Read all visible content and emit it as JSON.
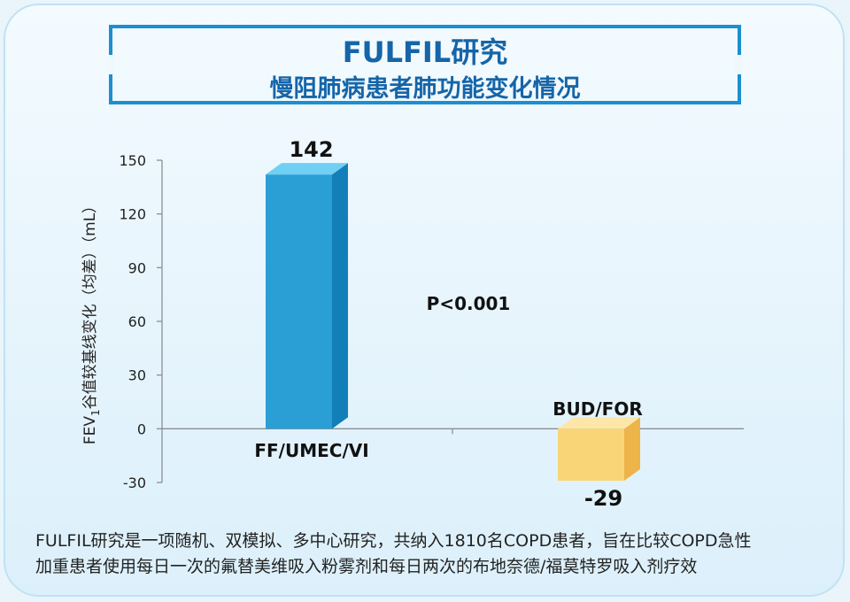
{
  "header": {
    "title": "FULFIL研究",
    "subtitle": "慢阻肺病患者肺功能变化情况"
  },
  "chart_data": {
    "type": "bar",
    "categories": [
      "FF/UMEC/VI",
      "BUD/FOR"
    ],
    "values": [
      142,
      -29
    ],
    "value_labels": [
      "142",
      "-29"
    ],
    "ylabel_parts": {
      "pre": "FEV",
      "sub": "1",
      "post": "谷值较基线变化（均差）（mL）"
    },
    "ylim": [
      -30,
      150
    ],
    "yticks": [
      -30,
      0,
      30,
      60,
      90,
      120,
      150
    ],
    "annotation": "P<0.001",
    "colors": [
      "#2a9fd6",
      "#f7c95c"
    ],
    "grid": false
  },
  "footnote": {
    "line1": "FULFIL研究是一项随机、双模拟、多中心研究，共纳入1810名COPD患者，旨在比较COPD急性",
    "line2": "加重患者使用每日一次的氟替美维吸入粉雾剂和每日两次的布地奈德/福莫特罗吸入剂疗效"
  }
}
